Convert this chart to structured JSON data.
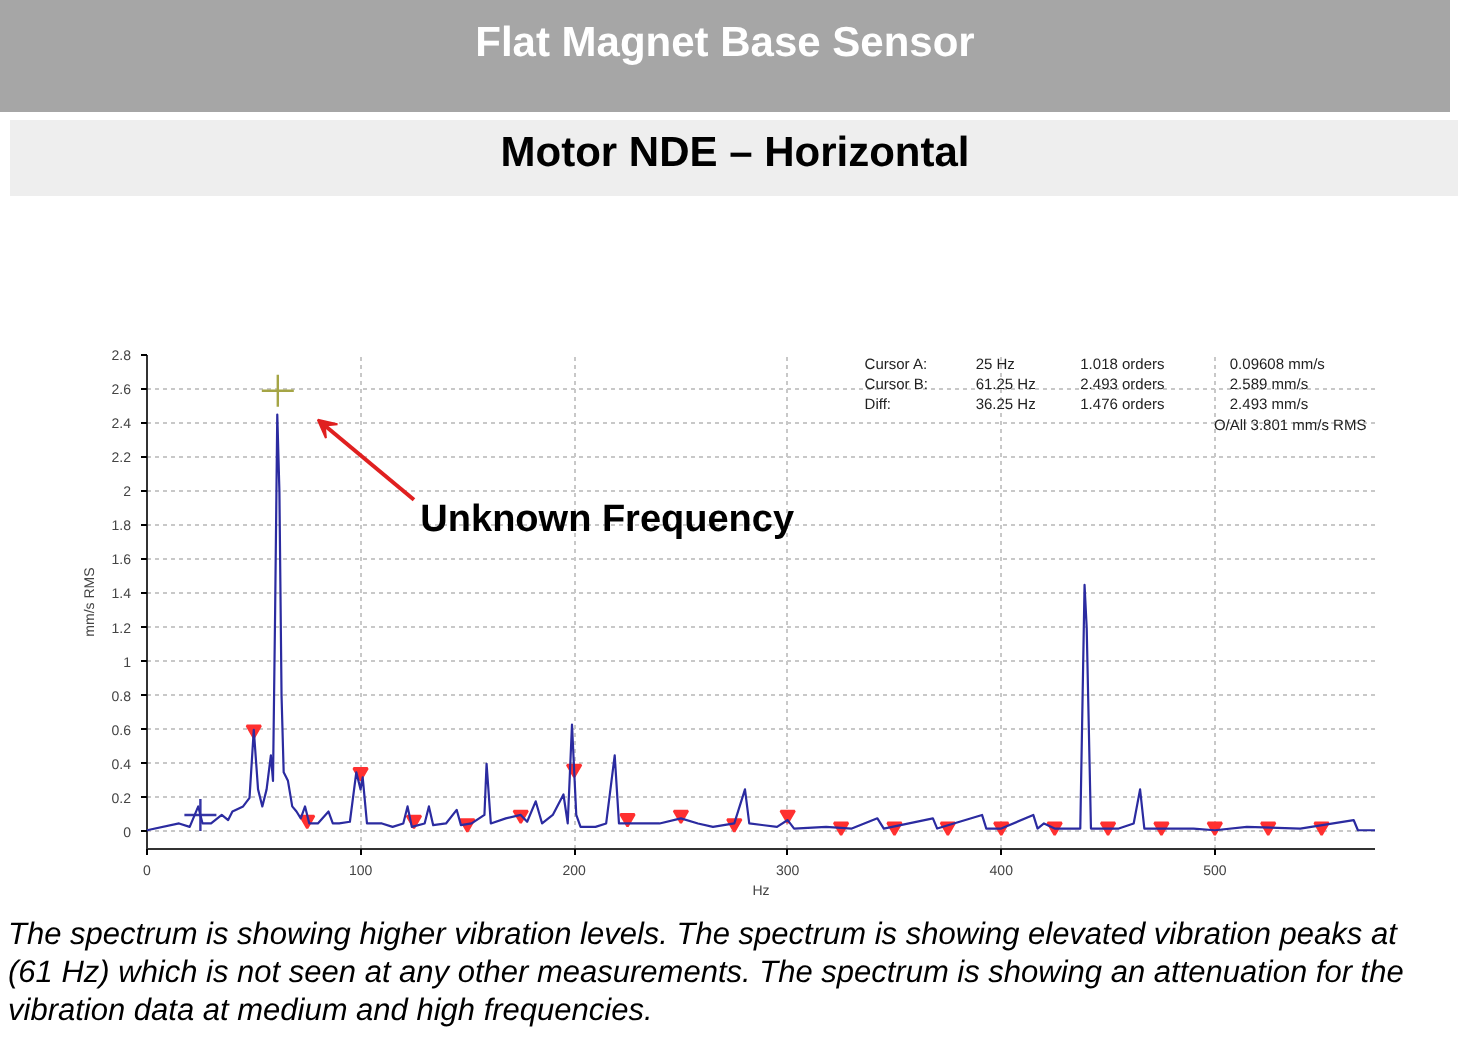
{
  "chart_data": {
    "type": "line",
    "title": "Flat Magnet Base Sensor",
    "subtitle": "Motor NDE – Horizontal",
    "xlabel": "Hz",
    "ylabel": "mm/s RMS",
    "xlim": [
      0,
      575
    ],
    "xticks": [
      0,
      100,
      200,
      300,
      400,
      500
    ],
    "ylim": [
      -0.1,
      2.8
    ],
    "yticks": [
      0,
      0.2,
      0.4,
      0.6,
      0.8,
      1,
      1.2,
      1.4,
      1.6,
      1.8,
      2,
      2.2,
      2.4,
      2.6,
      2.8
    ],
    "grid": true,
    "series": [
      {
        "color": "#2b2ba0",
        "marker": "none",
        "line_style": "solid",
        "x": [
          0,
          15,
          20,
          24,
          26,
          30,
          35,
          38,
          40,
          45,
          48,
          50,
          52,
          54,
          56,
          58,
          59,
          60,
          61,
          62,
          63,
          64,
          66,
          68,
          70,
          72,
          74,
          76,
          80,
          85,
          87,
          90,
          95,
          98,
          100,
          101,
          103,
          110,
          115,
          120,
          122,
          124,
          130,
          132,
          134,
          140,
          145,
          147,
          152,
          158,
          159,
          161,
          168,
          175,
          178,
          182,
          185,
          190,
          195,
          197,
          199,
          201,
          203,
          210,
          215,
          219,
          221,
          230,
          240,
          250,
          258,
          265,
          275,
          280,
          282,
          295,
          300,
          303,
          318,
          330,
          342,
          345,
          368,
          370,
          391,
          393,
          400,
          415,
          417,
          420,
          425,
          437,
          439,
          440,
          442,
          455,
          462,
          465,
          467,
          480,
          490,
          500,
          515,
          540,
          565,
          567,
          575
        ],
        "values": [
          0.01,
          0.05,
          0.03,
          0.15,
          0.05,
          0.05,
          0.1,
          0.07,
          0.12,
          0.15,
          0.2,
          0.6,
          0.25,
          0.15,
          0.25,
          0.45,
          0.3,
          1.3,
          2.45,
          2.0,
          0.8,
          0.35,
          0.3,
          0.15,
          0.12,
          0.08,
          0.15,
          0.05,
          0.05,
          0.12,
          0.05,
          0.05,
          0.06,
          0.35,
          0.25,
          0.32,
          0.05,
          0.05,
          0.03,
          0.05,
          0.15,
          0.03,
          0.05,
          0.15,
          0.04,
          0.05,
          0.13,
          0.04,
          0.05,
          0.1,
          0.4,
          0.05,
          0.08,
          0.1,
          0.06,
          0.18,
          0.05,
          0.1,
          0.22,
          0.05,
          0.63,
          0.1,
          0.03,
          0.03,
          0.05,
          0.45,
          0.05,
          0.05,
          0.05,
          0.08,
          0.05,
          0.03,
          0.05,
          0.25,
          0.05,
          0.03,
          0.07,
          0.02,
          0.03,
          0.02,
          0.08,
          0.02,
          0.08,
          0.02,
          0.1,
          0.02,
          0.02,
          0.1,
          0.02,
          0.05,
          0.02,
          0.02,
          1.45,
          1.2,
          0.02,
          0.02,
          0.05,
          0.25,
          0.02,
          0.02,
          0.02,
          0.01,
          0.03,
          0.02,
          0.07,
          0.01,
          0.01
        ]
      },
      {
        "type": "scatter",
        "color": "#ff3030",
        "marker": "triangle",
        "x": [
          50,
          75,
          100,
          125,
          150,
          175,
          200,
          225,
          250,
          275,
          300,
          325,
          350,
          375,
          400,
          425,
          450,
          475,
          500,
          525,
          550
        ],
        "values": [
          0.6,
          0.07,
          0.35,
          0.07,
          0.05,
          0.1,
          0.37,
          0.08,
          0.1,
          0.05,
          0.1,
          0.03,
          0.03,
          0.03,
          0.03,
          0.03,
          0.03,
          0.03,
          0.03,
          0.03,
          0.03
        ]
      },
      {
        "type": "scatter",
        "color": "#3535a5",
        "marker": "cross",
        "x": [
          25
        ],
        "values": [
          0.1
        ]
      },
      {
        "type": "scatter",
        "color": "#a5a545",
        "marker": "cross",
        "x": [
          61.25
        ],
        "values": [
          2.59
        ]
      }
    ],
    "annotations": [
      "Unknown Frequency",
      "Cursor A:",
      "25 Hz",
      "1.018 orders",
      "0.09608 mm/s",
      "Cursor B:",
      "61.25 Hz",
      "2.493 orders",
      "2.589 mm/s",
      "Diff:",
      "36.25 Hz",
      "1.476 orders",
      "2.493 mm/s",
      "O/All 3.801 mm/s RMS",
      "The spectrum is showing higher vibration levels. The spectrum is showing elevated vibration peaks at (61 Hz) which is not seen at any other measurements. The spectrum is showing an attenuation for the vibration data at medium and high frequencies."
    ]
  }
}
